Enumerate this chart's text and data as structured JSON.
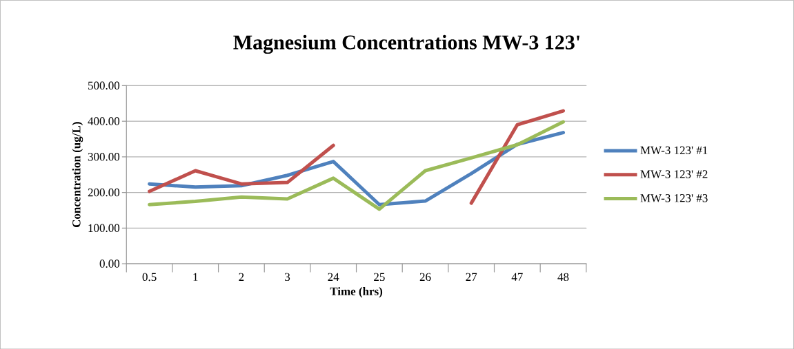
{
  "chart_data": {
    "type": "line",
    "title": "Magnesium Concentrations MW-3 123'",
    "xlabel": "Time (hrs)",
    "ylabel": "Concentration (ug/L)",
    "categories": [
      "0.5",
      "1",
      "2",
      "3",
      "24",
      "25",
      "26",
      "27",
      "47",
      "48"
    ],
    "series": [
      {
        "name": "MW-3 123' #1",
        "color": "#4f81bd",
        "values": [
          224,
          215,
          219,
          248,
          287,
          166,
          176,
          253,
          335,
          368
        ]
      },
      {
        "name": "MW-3 123' #2",
        "color": "#c0504d",
        "values": [
          203,
          261,
          224,
          228,
          332,
          null,
          null,
          170,
          390,
          429
        ]
      },
      {
        "name": "MW-3 123' #3",
        "color": "#9bbb59",
        "values": [
          166,
          175,
          187,
          182,
          240,
          153,
          261,
          297,
          334,
          398
        ]
      }
    ],
    "ylim": [
      0,
      500
    ],
    "yticks": [
      {
        "value": 0,
        "label": "0.00"
      },
      {
        "value": 100,
        "label": "100.00"
      },
      {
        "value": 200,
        "label": "200.00"
      },
      {
        "value": 300,
        "label": "300.00"
      },
      {
        "value": 400,
        "label": "400.00"
      },
      {
        "value": 500,
        "label": "500.00"
      }
    ],
    "grid": "y",
    "legend": "right",
    "marker": "none",
    "line_style": "solid"
  }
}
